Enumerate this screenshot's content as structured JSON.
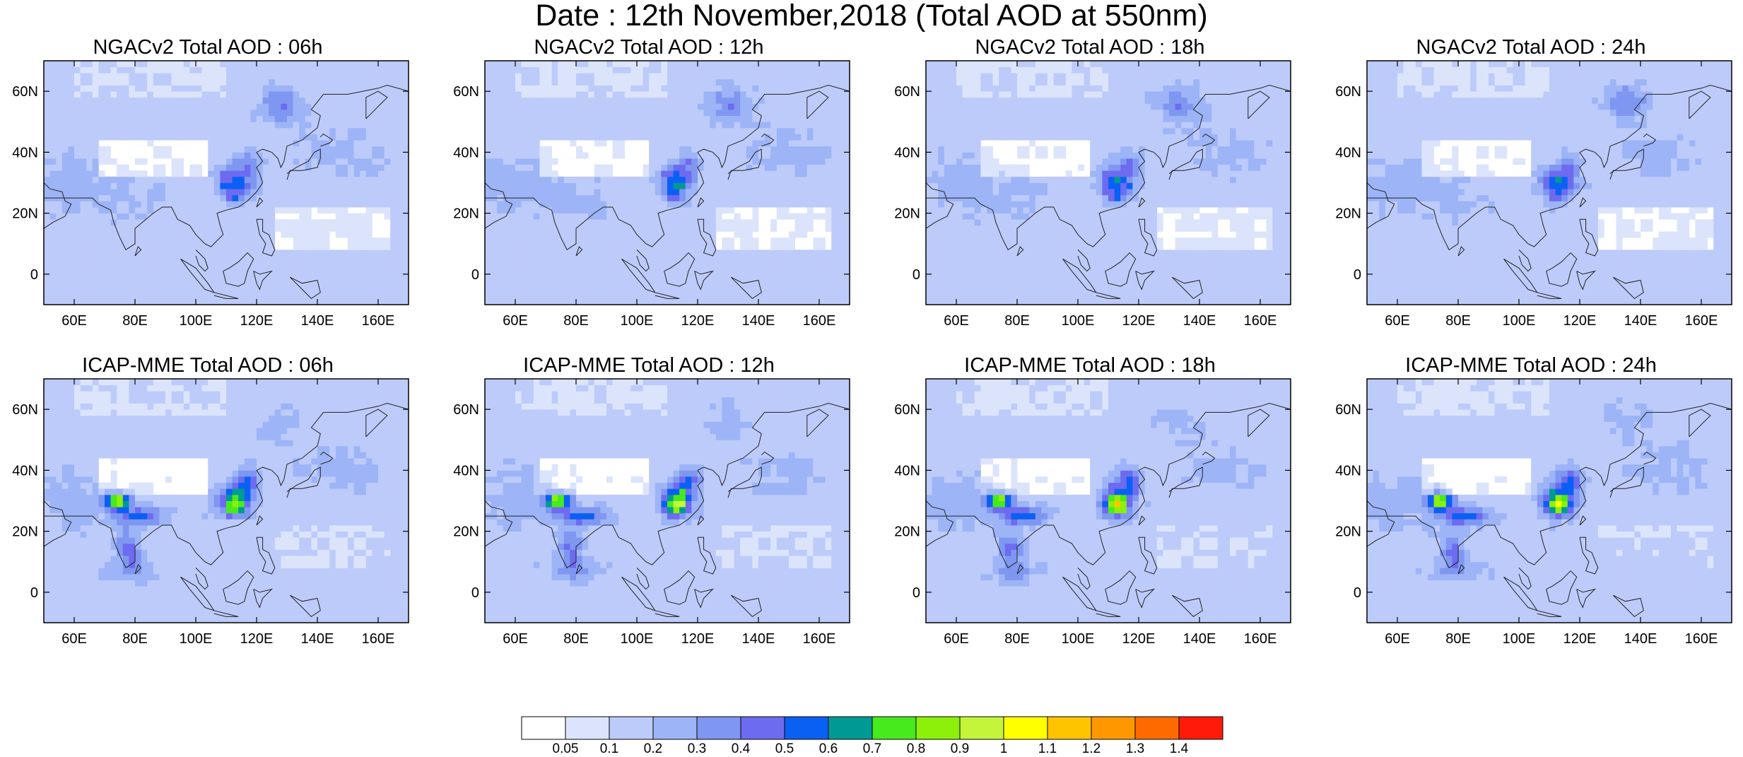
{
  "figure_title": "Date : 12th November,2018 (Total AOD at 550nm)",
  "chart_data": {
    "type": "heatmap",
    "panels": [
      {
        "title": "NGACv2 Total AOD : 06h",
        "model": "NGACv2",
        "lead": "06h"
      },
      {
        "title": "NGACv2 Total AOD : 12h",
        "model": "NGACv2",
        "lead": "12h"
      },
      {
        "title": "NGACv2 Total AOD : 18h",
        "model": "NGACv2",
        "lead": "18h"
      },
      {
        "title": "NGACv2 Total AOD : 24h",
        "model": "NGACv2",
        "lead": "24h"
      },
      {
        "title": "ICAP-MME Total AOD : 06h",
        "model": "ICAP-MME",
        "lead": "06h"
      },
      {
        "title": "ICAP-MME Total AOD : 12h",
        "model": "ICAP-MME",
        "lead": "12h"
      },
      {
        "title": "ICAP-MME Total AOD : 18h",
        "model": "ICAP-MME",
        "lead": "18h"
      },
      {
        "title": "ICAP-MME Total AOD : 24h",
        "model": "ICAP-MME",
        "lead": "24h"
      }
    ],
    "lon_range": [
      50,
      170
    ],
    "lat_range": [
      -10,
      70
    ],
    "x_ticks": [
      "60E",
      "80E",
      "100E",
      "120E",
      "140E",
      "160E"
    ],
    "x_tick_values": [
      60,
      80,
      100,
      120,
      140,
      160
    ],
    "y_ticks": [
      "0",
      "20N",
      "40N",
      "60N"
    ],
    "y_tick_values": [
      0,
      20,
      40,
      60
    ],
    "colorbar": {
      "levels": [
        "0.05",
        "0.1",
        "0.2",
        "0.3",
        "0.4",
        "0.5",
        "0.6",
        "0.7",
        "0.8",
        "0.9",
        "1",
        "1.1",
        "1.2",
        "1.3",
        "1.4"
      ],
      "colors": [
        "#ffffff",
        "#dce4fc",
        "#bdcbfa",
        "#9db4f7",
        "#7f97f1",
        "#6d6bf0",
        "#0b60f4",
        "#009a94",
        "#47ea1d",
        "#8cf00a",
        "#c4f53b",
        "#ffff00",
        "#ffc400",
        "#ff9800",
        "#ff6a00",
        "#ff1a0a"
      ]
    }
  }
}
